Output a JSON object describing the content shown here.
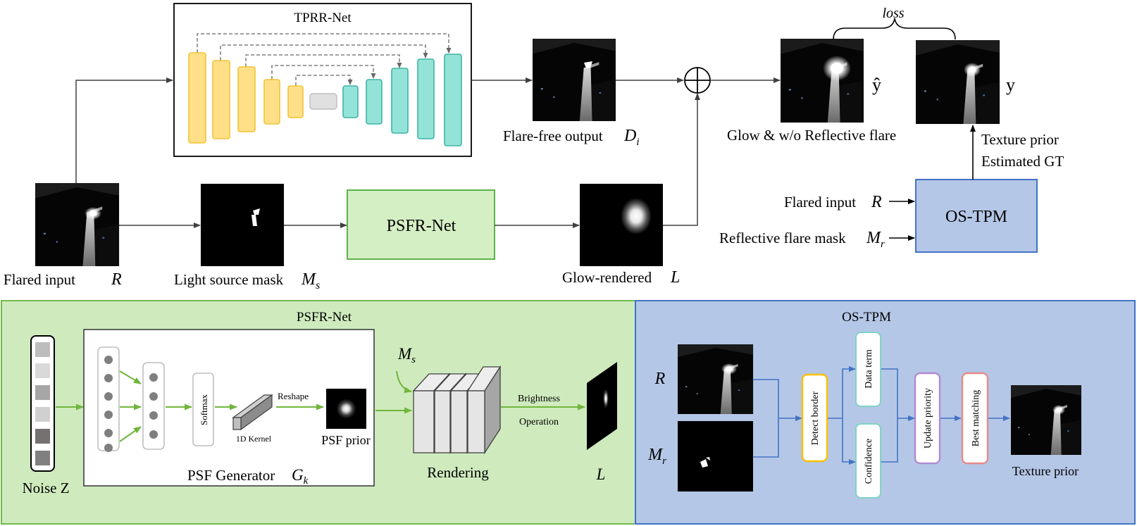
{
  "top": {
    "tprr_title": "TPRR-Net",
    "flare_free_caption": "Flare-free output",
    "flare_free_symbol": "D",
    "flare_free_sub": "i",
    "glow_wo_caption": "Glow & w/o Reflective flare",
    "y_hat": "ŷ",
    "y": "y",
    "loss": "loss",
    "texture_prior_label": "Texture prior",
    "estimated_gt_label": "Estimated GT",
    "flared_input_caption": "Flared input",
    "flared_input_symbol": "R",
    "light_mask_caption": "Light source mask",
    "light_mask_symbol": "M",
    "light_mask_sub": "s",
    "psfr_box_label": "PSFR-Net",
    "glow_rendered_caption": "Glow-rendered",
    "glow_rendered_symbol": "L",
    "ostpm_flared_input_label": "Flared input",
    "ostpm_flared_input_symbol": "R",
    "ostpm_reflective_mask_label": "Reflective flare mask",
    "ostpm_reflective_mask_symbol": "M",
    "ostpm_reflective_mask_sub": "r",
    "ostpm_box_label": "OS-TPM"
  },
  "psfr_panel": {
    "title": "PSFR-Net",
    "noise_label": "Noise Z",
    "softmax": "Softmax",
    "reshape": "Reshape",
    "kernel_1d": "1D Kernel",
    "psf_prior": "PSF prior",
    "generator_label": "PSF Generator",
    "generator_symbol": "G",
    "generator_sub": "k",
    "ms_symbol": "M",
    "ms_sub": "s",
    "rendering": "Rendering",
    "brightness": "Brightness",
    "operation": "Operation",
    "l_symbol": "L"
  },
  "ostpm_panel": {
    "title": "OS-TPM",
    "r_symbol": "R",
    "mr_symbol": "M",
    "mr_sub": "r",
    "detect_border": "Detect border",
    "data_term": "Data term",
    "confidence": "Confidence",
    "update_priority": "Update priority",
    "best_matching": "Best matching",
    "texture_prior": "Texture prior"
  },
  "colors": {
    "encoder_yellow": "#FFE088",
    "decoder_teal": "#94E3D8",
    "psfr_green_fill": "#D5EFC4",
    "psfr_panel_bg": "#CFEBBE",
    "ostpm_panel_bg": "#B4C7E7",
    "ostpm_box_fill": "#B4C7E7",
    "arrow_green": "#70B63C",
    "arrow_blue": "#4472C4"
  }
}
